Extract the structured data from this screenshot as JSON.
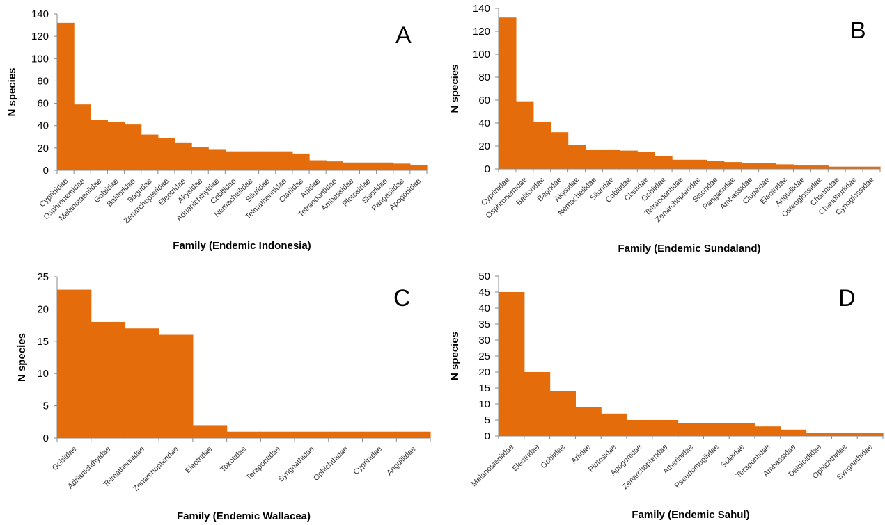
{
  "chart_data": [
    {
      "type": "bar",
      "panel_label": "A",
      "xlabel": "Family (Endemic Indonesia)",
      "ylabel": "N species",
      "ylim": [
        0,
        140
      ],
      "yticks": [
        0,
        20,
        40,
        60,
        80,
        100,
        120,
        140
      ],
      "bar_color": "#E46C0A",
      "categories": [
        "Cyprinidae",
        "Osphronemidae",
        "Melanotaeniidae",
        "Gobiidae",
        "Balitoridae",
        "Bagridae",
        "Zenarchopteridae",
        "Eleotridae",
        "Akysidae",
        "Adrianichthyidae",
        "Cobitidae",
        "Nemacheilidae",
        "Siluridae",
        "Telmatherinidae",
        "Clariidae",
        "Ariidae",
        "Tetraodontidae",
        "Ambassidae",
        "Plotosidae",
        "Sisoridae",
        "Pangasiidae",
        "Apogonidae"
      ],
      "values": [
        132,
        59,
        45,
        43,
        41,
        32,
        29,
        25,
        21,
        19,
        17,
        17,
        17,
        17,
        15,
        9,
        8,
        7,
        7,
        7,
        6,
        5
      ]
    },
    {
      "type": "bar",
      "panel_label": "B",
      "xlabel": "Family (Endemic Sundaland)",
      "ylabel": "N species",
      "ylim": [
        0,
        140
      ],
      "yticks": [
        0,
        20,
        40,
        60,
        80,
        100,
        120,
        140
      ],
      "bar_color": "#E46C0A",
      "categories": [
        "Cyprinidae",
        "Osphronemidae",
        "Balitoridae",
        "Bagridae",
        "Akysidae",
        "Nemacheilidae",
        "Siluridae",
        "Cobitidae",
        "Clariidae",
        "Gobiidae",
        "Tetraodontidae",
        "Zenarchopteridae",
        "Sisoridae",
        "Pangasiidae",
        "Ambassidae",
        "Clupeidae",
        "Eleotridae",
        "Anguillidae",
        "Osteoglossidae",
        "Channidae",
        "Chaudhuriidae",
        "Cynoglossidae"
      ],
      "values": [
        132,
        59,
        41,
        32,
        21,
        17,
        17,
        16,
        15,
        11,
        8,
        8,
        7,
        6,
        5,
        5,
        4,
        3,
        3,
        2,
        2,
        2
      ]
    },
    {
      "type": "bar",
      "panel_label": "C",
      "xlabel": "Family (Endemic Wallacea)",
      "ylabel": "N species",
      "ylim": [
        0,
        25
      ],
      "yticks": [
        0,
        5,
        10,
        15,
        20,
        25
      ],
      "bar_color": "#E46C0A",
      "categories": [
        "Gobiidae",
        "Adrianichthyidae",
        "Telmatherinidae",
        "Zenarchopteridae",
        "Eleotridae",
        "Toxotidae",
        "Terapontidae",
        "Syngnathidae",
        "Ophichthidae",
        "Cyprinidae",
        "Anguillidae"
      ],
      "values": [
        23,
        18,
        17,
        16,
        2,
        1,
        1,
        1,
        1,
        1,
        1
      ]
    },
    {
      "type": "bar",
      "panel_label": "D",
      "xlabel": "Family (Endemic Sahul)",
      "ylabel": "N species",
      "ylim": [
        0,
        50
      ],
      "yticks": [
        0,
        5,
        10,
        15,
        20,
        25,
        30,
        35,
        40,
        45,
        50
      ],
      "bar_color": "#E46C0A",
      "categories": [
        "Melanotaeniidae",
        "Eleotridae",
        "Gobiidae",
        "Ariidae",
        "Plotosidae",
        "Apogonidae",
        "Zenarchopteridae",
        "Atherinidae",
        "Pseudomugilidae",
        "Soleidae",
        "Terapontidae",
        "Ambassidae",
        "Datnioididae",
        "Ophichthidae",
        "Syngnathidae"
      ],
      "values": [
        45,
        20,
        14,
        9,
        7,
        5,
        5,
        4,
        4,
        4,
        3,
        2,
        1,
        1,
        1
      ]
    }
  ]
}
